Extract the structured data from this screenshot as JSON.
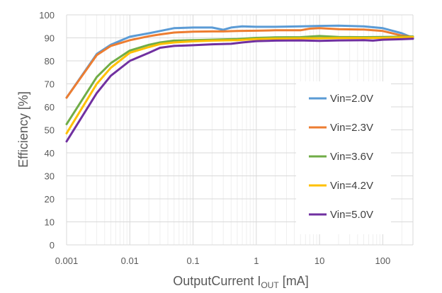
{
  "chart_data": {
    "type": "line",
    "x_scale": "log",
    "xlim": [
      0.001,
      300
    ],
    "ylim": [
      0,
      100
    ],
    "x_ticks": [
      "0.001",
      "0.01",
      "0.1",
      "1",
      "10",
      "100"
    ],
    "x_tick_values": [
      0.001,
      0.01,
      0.1,
      1,
      10,
      100
    ],
    "y_ticks": [
      "0",
      "10",
      "20",
      "30",
      "40",
      "50",
      "60",
      "70",
      "80",
      "90",
      "100"
    ],
    "y_tick_values": [
      0,
      10,
      20,
      30,
      40,
      50,
      60,
      70,
      80,
      90,
      100
    ],
    "xlabel": {
      "main": "OutputCurrent  I",
      "sub": "OUT",
      "unit": " [mA]"
    },
    "ylabel": "Efficiency [%]",
    "grid": true,
    "legend_position": "center-right",
    "series": [
      {
        "name": "Vin=2.0V",
        "color": "#5b9bd5",
        "x": [
          0.001,
          0.003,
          0.005,
          0.01,
          0.02,
          0.03,
          0.05,
          0.1,
          0.2,
          0.3,
          0.4,
          0.6,
          1,
          2,
          5,
          10,
          20,
          50,
          100,
          200,
          300
        ],
        "y": [
          64,
          83,
          87,
          90.5,
          92,
          93,
          94.2,
          94.5,
          94.5,
          93.5,
          94.5,
          95,
          94.8,
          94.8,
          95,
          95.2,
          95.3,
          95,
          94.2,
          92,
          90
        ]
      },
      {
        "name": "Vin=2.3V",
        "color": "#ed7d31",
        "x": [
          0.001,
          0.003,
          0.005,
          0.01,
          0.02,
          0.03,
          0.05,
          0.1,
          0.2,
          0.3,
          0.5,
          1,
          2,
          5,
          7,
          10,
          20,
          50,
          100,
          200,
          300
        ],
        "y": [
          64,
          82.5,
          86.5,
          89,
          90.7,
          91.5,
          92.3,
          92.7,
          92.8,
          92.8,
          93,
          93.1,
          93.3,
          93.3,
          94,
          94.2,
          93.8,
          93.6,
          93,
          91,
          90.5
        ]
      },
      {
        "name": "Vin=3.6V",
        "color": "#70ad47",
        "x": [
          0.001,
          0.003,
          0.005,
          0.01,
          0.02,
          0.03,
          0.05,
          0.1,
          0.2,
          0.5,
          1,
          2,
          5,
          10,
          20,
          50,
          100,
          200,
          300
        ],
        "y": [
          52.5,
          73,
          79,
          84.5,
          87,
          88,
          88.8,
          89,
          89.2,
          89.5,
          90,
          90.2,
          90.3,
          90.8,
          90.4,
          90.3,
          90.4,
          90.5,
          90.6
        ]
      },
      {
        "name": "Vin=4.2V",
        "color": "#ffc000",
        "x": [
          0.001,
          0.003,
          0.005,
          0.01,
          0.02,
          0.03,
          0.05,
          0.1,
          0.2,
          0.5,
          1,
          2,
          5,
          10,
          20,
          50,
          100,
          200,
          300
        ],
        "y": [
          48.5,
          70,
          77,
          83.5,
          86,
          87.3,
          88,
          88.5,
          88.8,
          89,
          89.5,
          89.7,
          89.8,
          89.8,
          89.9,
          89.9,
          90,
          90.2,
          90.3
        ]
      },
      {
        "name": "Vin=5.0V",
        "color": "#7030a0",
        "x": [
          0.001,
          0.003,
          0.005,
          0.01,
          0.02,
          0.03,
          0.05,
          0.1,
          0.2,
          0.4,
          0.6,
          1,
          2,
          5,
          10,
          20,
          50,
          70,
          100,
          200,
          300
        ],
        "y": [
          45,
          66,
          73.5,
          80,
          83.5,
          85.7,
          86.5,
          86.8,
          87.2,
          87.4,
          88,
          88.6,
          88.8,
          88.9,
          88.7,
          88.9,
          89,
          88.8,
          89.2,
          89.4,
          89.6
        ]
      }
    ]
  }
}
